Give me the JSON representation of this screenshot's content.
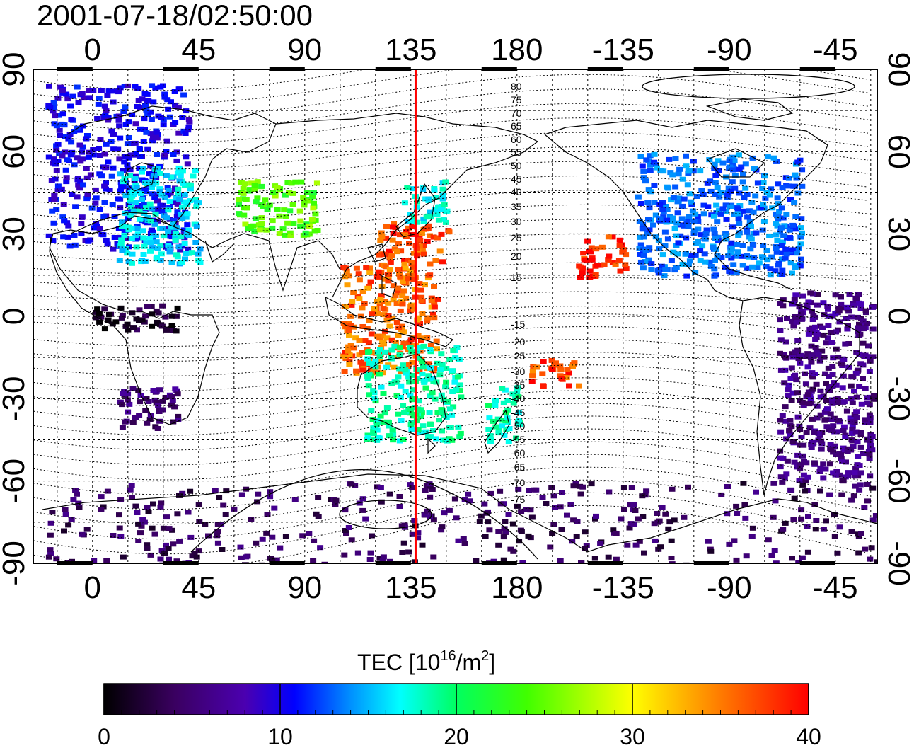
{
  "title": "2001-07-18/02:50:00",
  "colorbar_label_main": "TEC  [10",
  "colorbar_label_exp": "16",
  "colorbar_label_mid": "/m",
  "colorbar_label_exp2": "2",
  "colorbar_label_end": "]",
  "x_ticks": [
    "0",
    "45",
    "90",
    "135",
    "180",
    "-135",
    "-90",
    "-45"
  ],
  "y_ticks_left": [
    "90",
    "60",
    "30",
    "0",
    "-30",
    "-60",
    "-90"
  ],
  "y_ticks_right": [
    "90",
    "60",
    "30",
    "0",
    "-30",
    "-60",
    "-90"
  ],
  "magnetic_lat_labels": [
    "80",
    "75",
    "70",
    "65",
    "60",
    "55",
    "50",
    "45",
    "40",
    "35",
    "30",
    "25",
    "20",
    "15",
    "-15",
    "-20",
    "-25",
    "-30",
    "-35",
    "-40",
    "-45",
    "-50",
    "-55",
    "-60",
    "-65",
    "-70",
    "-75"
  ],
  "colorbar_ticks": [
    "0",
    "10",
    "20",
    "30",
    "40"
  ],
  "colorbar_range": [
    0,
    40
  ],
  "terminator_longitude": 137,
  "colors": {
    "terminator": "#ff0000",
    "gradient": [
      "#000000",
      "#3a0060",
      "#4b00b0",
      "#0000ff",
      "#0090ff",
      "#00ffff",
      "#00ff60",
      "#40ff00",
      "#ffff00",
      "#ff8000",
      "#ff0000"
    ]
  },
  "chart_data": {
    "type": "heatmap",
    "xlabel": "",
    "ylabel": "",
    "xlim": [
      -25,
      340
    ],
    "ylim": [
      -90,
      90
    ],
    "value_range": [
      0,
      40
    ],
    "regions": [
      {
        "lon": [
          -20,
          40
        ],
        "lat": [
          25,
          85
        ],
        "value": 11
      },
      {
        "lon": [
          10,
          45
        ],
        "lat": [
          20,
          55
        ],
        "value": 19
      },
      {
        "lon": [
          60,
          95
        ],
        "lat": [
          30,
          50
        ],
        "value": 28
      },
      {
        "lon": [
          120,
          150
        ],
        "lat": [
          20,
          35
        ],
        "value": 38
      },
      {
        "lon": [
          130,
          150
        ],
        "lat": [
          35,
          50
        ],
        "value": 20
      },
      {
        "lon": [
          105,
          145
        ],
        "lat": [
          -20,
          20
        ],
        "value": 37
      },
      {
        "lon": [
          115,
          155
        ],
        "lat": [
          -45,
          -10
        ],
        "value": 22
      },
      {
        "lon": [
          165,
          180
        ],
        "lat": [
          -45,
          -25
        ],
        "value": 22
      },
      {
        "lon": [
          185,
          205
        ],
        "lat": [
          -25,
          -15
        ],
        "value": 38
      },
      {
        "lon": [
          205,
          225
        ],
        "lat": [
          15,
          30
        ],
        "value": 39
      },
      {
        "lon": [
          230,
          300
        ],
        "lat": [
          15,
          60
        ],
        "value": 15
      },
      {
        "lon": [
          290,
          330
        ],
        "lat": [
          -60,
          10
        ],
        "value": 6
      },
      {
        "lon": [
          0,
          35
        ],
        "lat": [
          -5,
          5
        ],
        "value": 2
      },
      {
        "lon": [
          10,
          35
        ],
        "lat": [
          -40,
          -25
        ],
        "value": 5
      },
      {
        "lon": [
          -20,
          350
        ],
        "lat": [
          -90,
          -60
        ],
        "value": 4
      }
    ]
  }
}
